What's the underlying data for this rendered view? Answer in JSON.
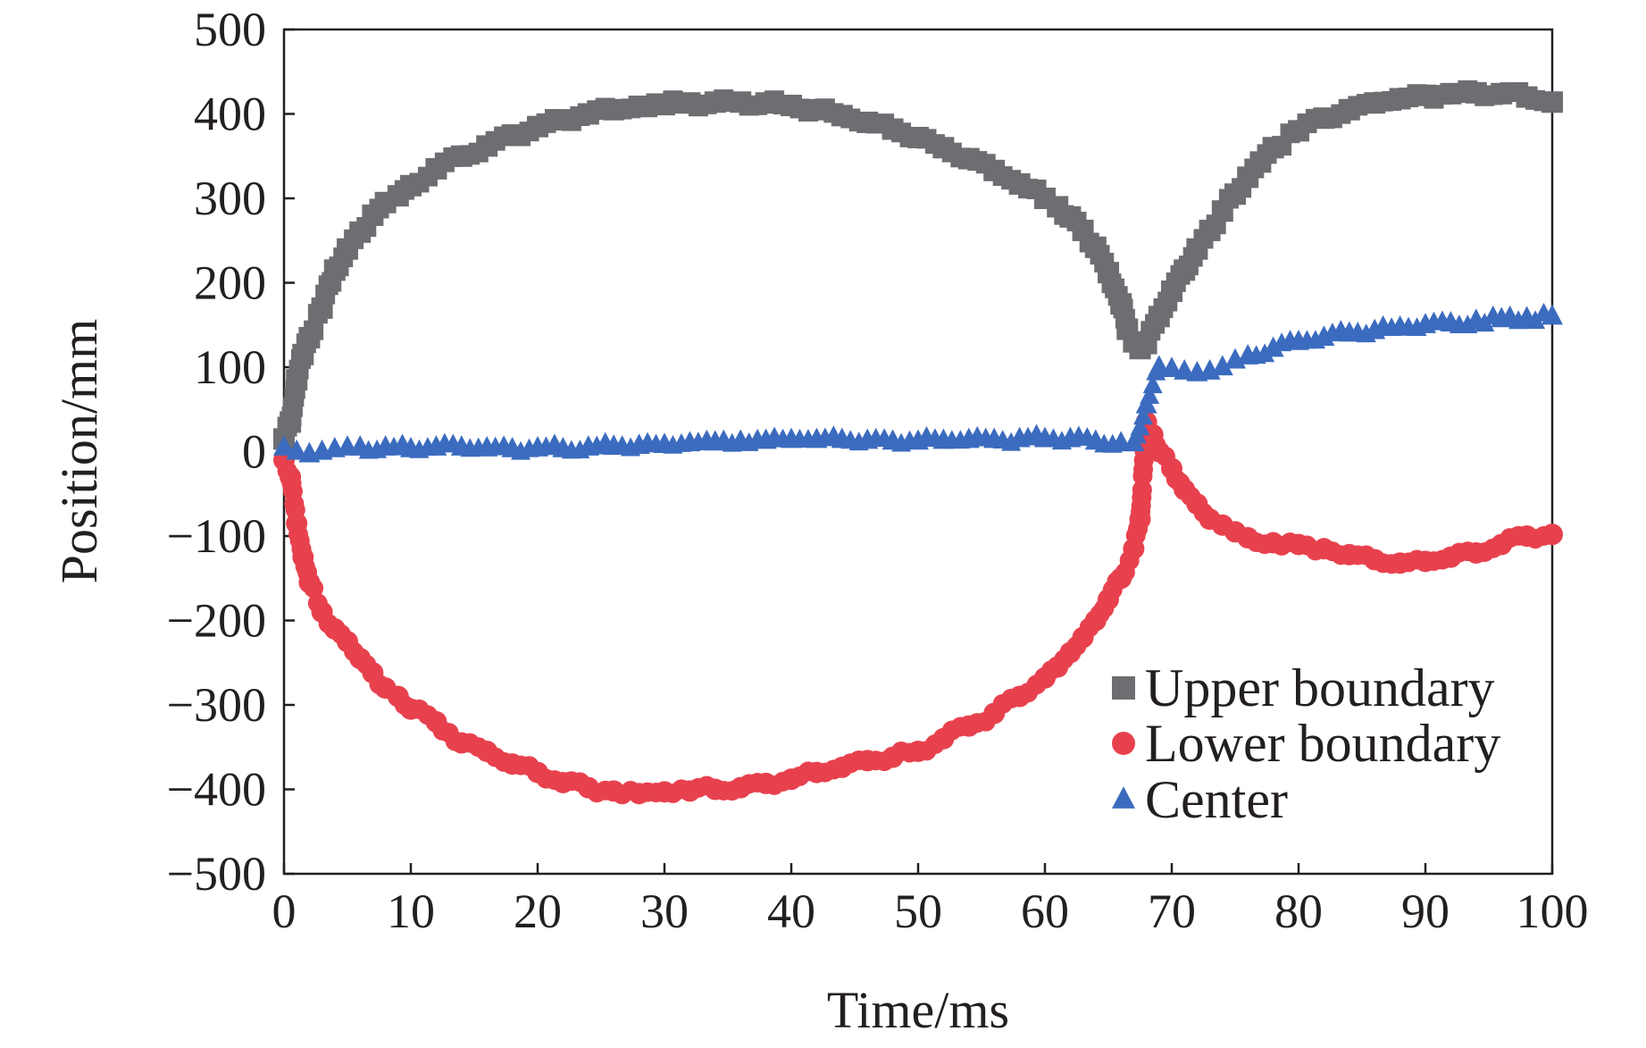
{
  "chart_data": {
    "type": "scatter",
    "xlabel": "Time/ms",
    "ylabel": "Position/mm",
    "xlim": [
      0,
      100
    ],
    "ylim": [
      -500,
      500
    ],
    "xticks": [
      "0",
      "10",
      "20",
      "30",
      "40",
      "50",
      "60",
      "70",
      "80",
      "90",
      "100"
    ],
    "yticks": [
      "500",
      "400",
      "300",
      "200",
      "100",
      "0",
      "−100",
      "−200",
      "−300",
      "−400",
      "−500"
    ],
    "grid": false,
    "legend_position": "bottom-right",
    "series": [
      {
        "name": "Upper boundary",
        "marker": "square",
        "color": "#6d6e71",
        "points": [
          [
            0,
            15
          ],
          [
            0.5,
            35
          ],
          [
            1,
            85
          ],
          [
            1.5,
            115
          ],
          [
            2,
            135
          ],
          [
            3,
            170
          ],
          [
            4,
            215
          ],
          [
            5,
            240
          ],
          [
            6,
            260
          ],
          [
            7,
            280
          ],
          [
            8,
            295
          ],
          [
            9,
            303
          ],
          [
            10,
            315
          ],
          [
            12,
            335
          ],
          [
            14,
            350
          ],
          [
            16,
            362
          ],
          [
            18,
            375
          ],
          [
            20,
            385
          ],
          [
            22,
            393
          ],
          [
            24,
            400
          ],
          [
            26,
            405
          ],
          [
            28,
            409
          ],
          [
            30,
            411
          ],
          [
            32,
            413
          ],
          [
            34,
            414
          ],
          [
            36,
            414
          ],
          [
            38,
            413
          ],
          [
            40,
            410
          ],
          [
            42,
            405
          ],
          [
            44,
            398
          ],
          [
            46,
            390
          ],
          [
            48,
            382
          ],
          [
            50,
            372
          ],
          [
            52,
            360
          ],
          [
            54,
            347
          ],
          [
            56,
            333
          ],
          [
            58,
            317
          ],
          [
            60,
            300
          ],
          [
            61,
            290
          ],
          [
            62,
            278
          ],
          [
            63,
            262
          ],
          [
            64,
            242
          ],
          [
            65,
            212
          ],
          [
            66,
            175
          ],
          [
            66.5,
            145
          ],
          [
            67,
            130
          ],
          [
            67.5,
            122
          ],
          [
            68,
            128
          ],
          [
            69,
            160
          ],
          [
            70,
            190
          ],
          [
            71,
            215
          ],
          [
            72,
            240
          ],
          [
            73,
            262
          ],
          [
            74,
            285
          ],
          [
            75,
            305
          ],
          [
            76,
            325
          ],
          [
            77,
            343
          ],
          [
            78,
            360
          ],
          [
            80,
            380
          ],
          [
            82,
            395
          ],
          [
            84,
            405
          ],
          [
            86,
            413
          ],
          [
            88,
            418
          ],
          [
            90,
            422
          ],
          [
            92,
            424
          ],
          [
            94,
            425
          ],
          [
            96,
            424
          ],
          [
            98,
            420
          ],
          [
            100,
            414
          ]
        ]
      },
      {
        "name": "Lower boundary",
        "marker": "circle",
        "color": "#e8414e",
        "points": [
          [
            0,
            -10
          ],
          [
            0.5,
            -30
          ],
          [
            1,
            -85
          ],
          [
            1.5,
            -125
          ],
          [
            2,
            -155
          ],
          [
            3,
            -190
          ],
          [
            4,
            -210
          ],
          [
            5,
            -225
          ],
          [
            6,
            -245
          ],
          [
            7,
            -262
          ],
          [
            8,
            -280
          ],
          [
            9,
            -290
          ],
          [
            10,
            -305
          ],
          [
            12,
            -320
          ],
          [
            14,
            -345
          ],
          [
            16,
            -355
          ],
          [
            18,
            -370
          ],
          [
            20,
            -380
          ],
          [
            22,
            -392
          ],
          [
            24,
            -398
          ],
          [
            26,
            -402
          ],
          [
            28,
            -405
          ],
          [
            30,
            -403
          ],
          [
            32,
            -402
          ],
          [
            34,
            -400
          ],
          [
            36,
            -398
          ],
          [
            38,
            -393
          ],
          [
            40,
            -388
          ],
          [
            42,
            -380
          ],
          [
            44,
            -374
          ],
          [
            46,
            -366
          ],
          [
            48,
            -362
          ],
          [
            50,
            -355
          ],
          [
            52,
            -340
          ],
          [
            54,
            -325
          ],
          [
            56,
            -310
          ],
          [
            58,
            -290
          ],
          [
            60,
            -268
          ],
          [
            61,
            -255
          ],
          [
            62,
            -238
          ],
          [
            63,
            -220
          ],
          [
            64,
            -200
          ],
          [
            65,
            -175
          ],
          [
            66,
            -150
          ],
          [
            67,
            -115
          ],
          [
            67.5,
            -80
          ],
          [
            68,
            35
          ],
          [
            68.5,
            20
          ],
          [
            69,
            0
          ],
          [
            70,
            -20
          ],
          [
            71,
            -45
          ],
          [
            72,
            -62
          ],
          [
            73,
            -80
          ],
          [
            74,
            -87
          ],
          [
            75,
            -95
          ],
          [
            76,
            -102
          ],
          [
            78,
            -108
          ],
          [
            80,
            -110
          ],
          [
            82,
            -115
          ],
          [
            84,
            -122
          ],
          [
            86,
            -128
          ],
          [
            88,
            -132
          ],
          [
            90,
            -130
          ],
          [
            92,
            -125
          ],
          [
            94,
            -120
          ],
          [
            96,
            -110
          ],
          [
            98,
            -100
          ],
          [
            100,
            -98
          ]
        ]
      },
      {
        "name": "Center",
        "marker": "triangle",
        "color": "#3b6bbf",
        "points": [
          [
            0,
            5
          ],
          [
            1,
            0
          ],
          [
            2,
            -3
          ],
          [
            3,
            0
          ],
          [
            4,
            3
          ],
          [
            5,
            5
          ],
          [
            6,
            5
          ],
          [
            8,
            5
          ],
          [
            10,
            3
          ],
          [
            12,
            5
          ],
          [
            14,
            5
          ],
          [
            16,
            4
          ],
          [
            18,
            3
          ],
          [
            20,
            4
          ],
          [
            22,
            3
          ],
          [
            24,
            5
          ],
          [
            26,
            6
          ],
          [
            28,
            7
          ],
          [
            30,
            8
          ],
          [
            32,
            10
          ],
          [
            34,
            11
          ],
          [
            36,
            12
          ],
          [
            38,
            13
          ],
          [
            40,
            14
          ],
          [
            42,
            14
          ],
          [
            44,
            14
          ],
          [
            46,
            13
          ],
          [
            48,
            12
          ],
          [
            50,
            12
          ],
          [
            52,
            13
          ],
          [
            54,
            14
          ],
          [
            56,
            14
          ],
          [
            58,
            15
          ],
          [
            60,
            15
          ],
          [
            62,
            15
          ],
          [
            64,
            12
          ],
          [
            66,
            10
          ],
          [
            67,
            10
          ],
          [
            68,
            55
          ],
          [
            69,
            100
          ],
          [
            70,
            98
          ],
          [
            71,
            95
          ],
          [
            72,
            93
          ],
          [
            73,
            95
          ],
          [
            74,
            100
          ],
          [
            75,
            108
          ],
          [
            76,
            113
          ],
          [
            78,
            122
          ],
          [
            80,
            130
          ],
          [
            82,
            135
          ],
          [
            84,
            140
          ],
          [
            86,
            143
          ],
          [
            88,
            147
          ],
          [
            90,
            150
          ],
          [
            92,
            152
          ],
          [
            94,
            155
          ],
          [
            96,
            157
          ],
          [
            98,
            158
          ],
          [
            100,
            160
          ]
        ]
      }
    ]
  }
}
